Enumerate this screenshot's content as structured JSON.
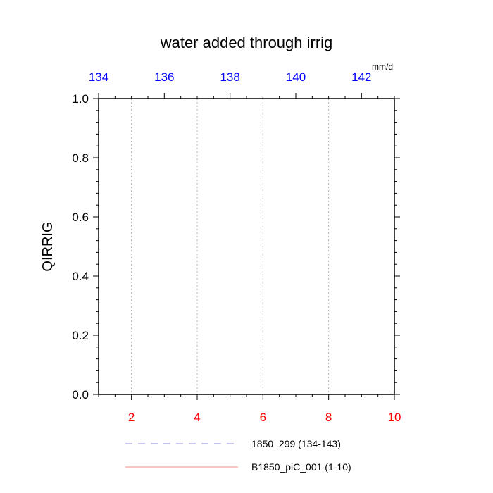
{
  "chart_data": {
    "type": "line",
    "title": "water added through irrig",
    "ylabel": "QIRRIG",
    "units": "mm/d",
    "ylim": [
      0.0,
      1.0
    ],
    "yticks": [
      0.0,
      0.2,
      0.4,
      0.6,
      0.8,
      1.0
    ],
    "ytick_labels": [
      "0.0",
      "0.2",
      "0.4",
      "0.6",
      "0.8",
      "1.0"
    ],
    "x_bottom": {
      "range": [
        1,
        10
      ],
      "ticks": [
        2,
        4,
        6,
        8,
        10
      ],
      "tick_labels": [
        "2",
        "4",
        "6",
        "8",
        "10"
      ],
      "color": "#ff0000"
    },
    "x_top": {
      "range": [
        134,
        143
      ],
      "ticks": [
        134,
        136,
        138,
        140,
        142
      ],
      "tick_labels": [
        "134",
        "136",
        "138",
        "140",
        "142"
      ],
      "color": "#0000ff"
    },
    "grid": "vertical-dotted",
    "legend_position": "bottom",
    "series": [
      {
        "name": "1850_299 (134-143)",
        "style": "dashed",
        "color": "#8a8adf",
        "axis": "top",
        "x": [],
        "y": []
      },
      {
        "name": "B1850_piC_001 (1-10)",
        "style": "solid",
        "color": "#f08a8a",
        "axis": "bottom",
        "x": [],
        "y": []
      }
    ]
  }
}
